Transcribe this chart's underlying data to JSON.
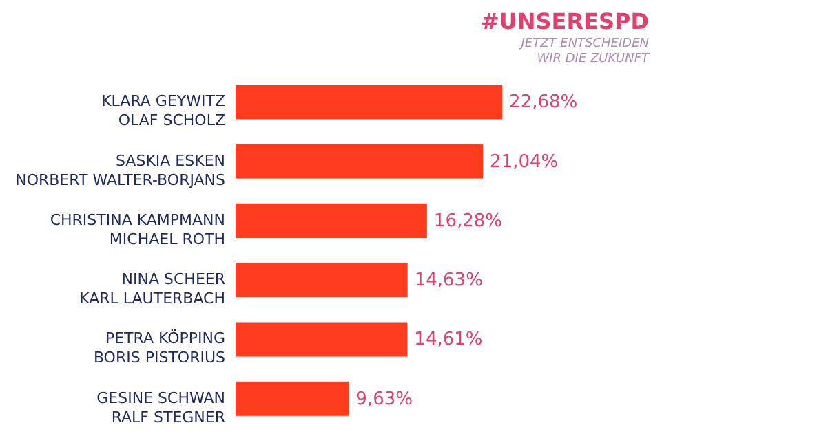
{
  "chart_data": {
    "type": "bar",
    "orientation": "horizontal",
    "categories": [
      "KLARA GEYWITZ\nOLAF SCHOLZ",
      "SASKIA ESKEN\nNORBERT WALTER-BORJANS",
      "CHRISTINA KAMPMANN\nMICHAEL ROTH",
      "NINA SCHEER\nKARL LAUTERBACH",
      "PETRA KÖPPING\nBORIS PISTORIUS",
      "GESINE SCHWAN\nRALF STEGNER"
    ],
    "values": [
      22.68,
      21.04,
      16.28,
      14.63,
      14.61,
      9.63
    ],
    "value_labels": [
      "22,68%",
      "21,04%",
      "16,28%",
      "14,63%",
      "14,61%",
      "9,63%"
    ],
    "color": "#ff3d1e",
    "annotations": [
      "#UNSERESPD",
      "JETZT ENTSCHEIDEN\nWIR DIE ZUKUNFT"
    ]
  }
}
